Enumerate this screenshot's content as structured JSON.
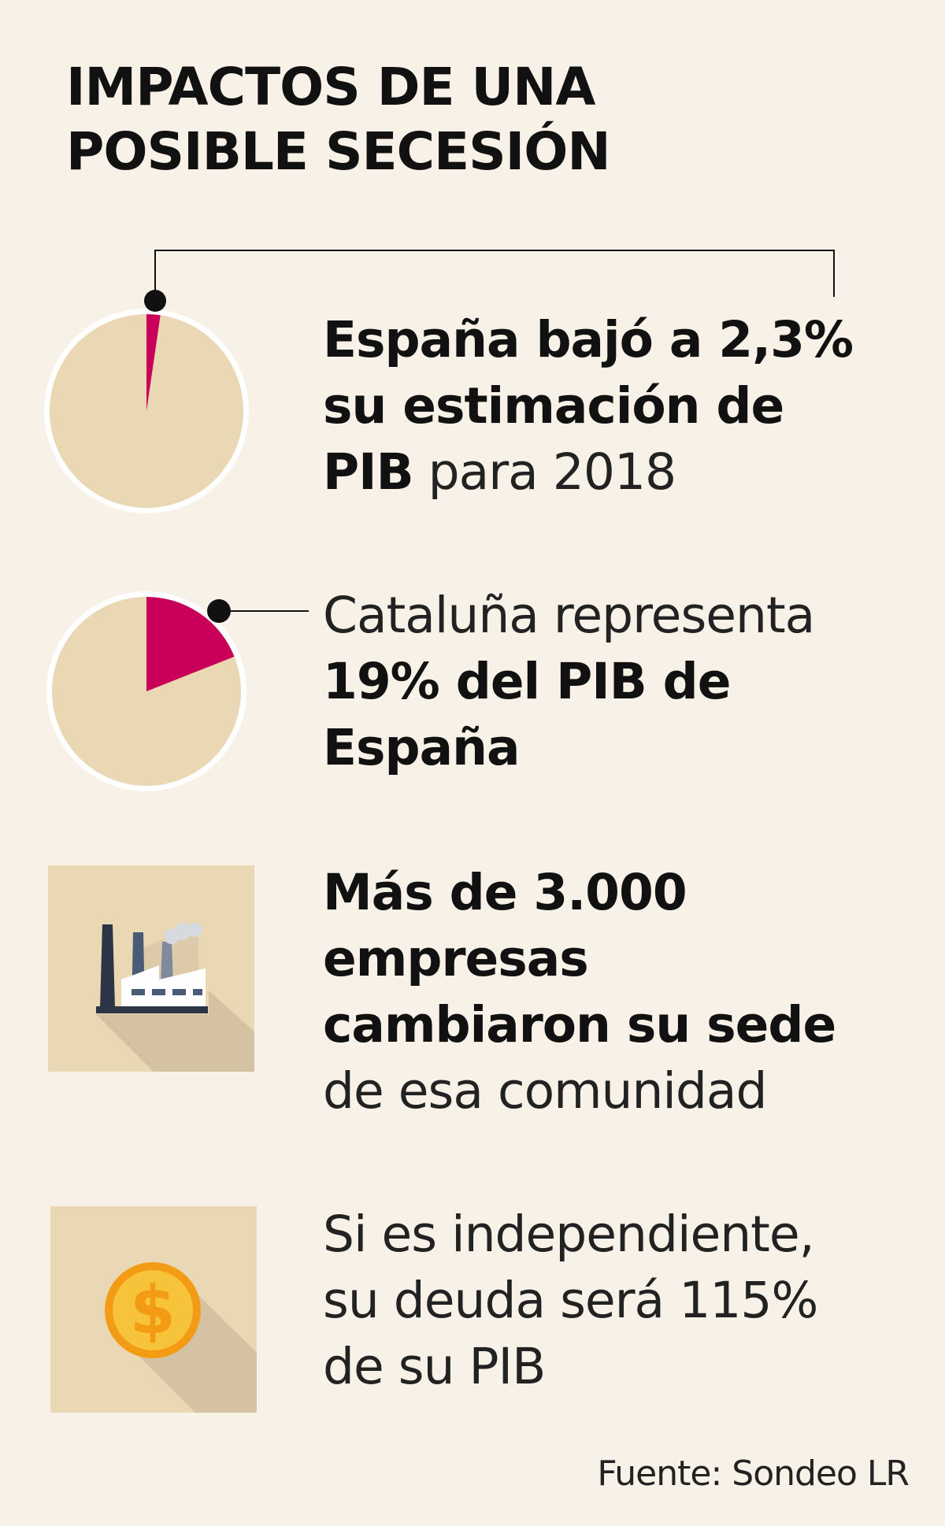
{
  "title": [
    "IMPACTOS DE UNA",
    "POSIBLE SECESIÓN"
  ],
  "facts": [
    {
      "lines": [
        [
          {
            "t": "España bajó a 2,3%",
            "w": "b"
          }
        ],
        [
          {
            "t": "su estimación de",
            "w": "b"
          }
        ],
        [
          {
            "t": "PIB",
            "w": "b"
          },
          {
            "t": " para 2018",
            "w": "l"
          }
        ]
      ]
    },
    {
      "lines": [
        [
          {
            "t": "Cataluña representa",
            "w": "l"
          }
        ],
        [
          {
            "t": "19% del PIB de",
            "w": "b"
          }
        ],
        [
          {
            "t": "España",
            "w": "b"
          }
        ]
      ]
    },
    {
      "lines": [
        [
          {
            "t": "Más de 3.000",
            "w": "b"
          }
        ],
        [
          {
            "t": "empresas",
            "w": "b"
          }
        ],
        [
          {
            "t": "cambiaron su sede",
            "w": "b"
          }
        ],
        [
          {
            "t": "de esa comunidad",
            "w": "l"
          }
        ]
      ]
    },
    {
      "lines": [
        [
          {
            "t": "Si es independiente,",
            "w": "l"
          }
        ],
        [
          {
            "t": "su deuda será 115%",
            "w": "l"
          }
        ],
        [
          {
            "t": "de su PIB",
            "w": "l"
          }
        ]
      ]
    }
  ],
  "source": "Fuente: Sondeo LR",
  "icons": [
    "factory-icon",
    "dollar-coin-icon"
  ],
  "colors": {
    "background": "#f7f1e7",
    "pie_base": "#ead8b5",
    "highlight": "#c8005a",
    "icon_tile": "#ead8b5",
    "coin": "#f7b829"
  },
  "chart_data": [
    {
      "type": "pie",
      "slices": [
        {
          "value": 2.3,
          "color": "#c8005a"
        },
        {
          "value": 97.7,
          "color": "#ead8b5"
        }
      ]
    },
    {
      "type": "pie",
      "slices": [
        {
          "value": 19,
          "color": "#c8005a"
        },
        {
          "value": 81,
          "color": "#ead8b5"
        }
      ]
    }
  ]
}
